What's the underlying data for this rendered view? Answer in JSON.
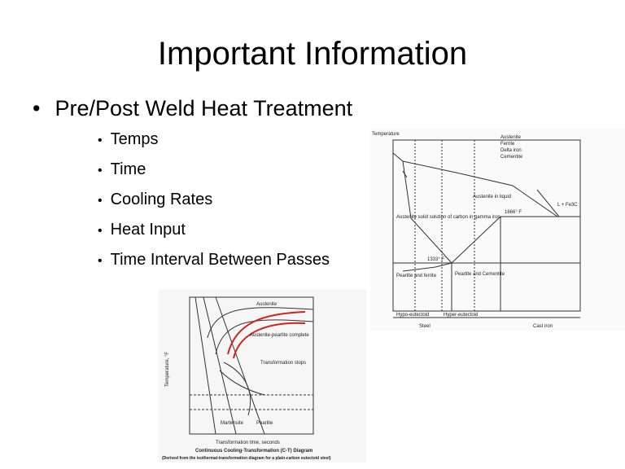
{
  "header": {
    "title": "Important Information"
  },
  "bullets": [
    {
      "text": "Pre/Post Weld Heat Treatment",
      "sub_bullets": [
        "Temps",
        "Time",
        "Cooling Rates",
        "Heat Input",
        "Time Interval Between Passes"
      ]
    }
  ],
  "figures": {
    "phase_diagram": {
      "labels": [
        "Temperature",
        "Austenite",
        "Ferrite",
        "Delta iron",
        "Cementite",
        "Austenite solid solution of carbon in gamma iron",
        "Pearlite and Cementite",
        "Pearlite and ferrite",
        "Steel",
        "Cast iron",
        "Hypo-eutectoid",
        "Hyper-eutectoid",
        "Austenite in liquid",
        "L + Fe3C",
        "1666° F",
        "1333° F"
      ]
    },
    "cct_diagram": {
      "caption": "Continuous Cooling-Transformation (C-T) Diagram",
      "subcaption": "(Derived from the isothermal-transformation diagram for a plain-carbon eutectoid steel)",
      "x_label": "Transformation time, seconds",
      "y_label": "Temperature, °F",
      "labels": [
        "Austenite",
        "Austenite-pearlite complete",
        "Transformation stops",
        "Martensite",
        "Pearlite"
      ]
    }
  }
}
